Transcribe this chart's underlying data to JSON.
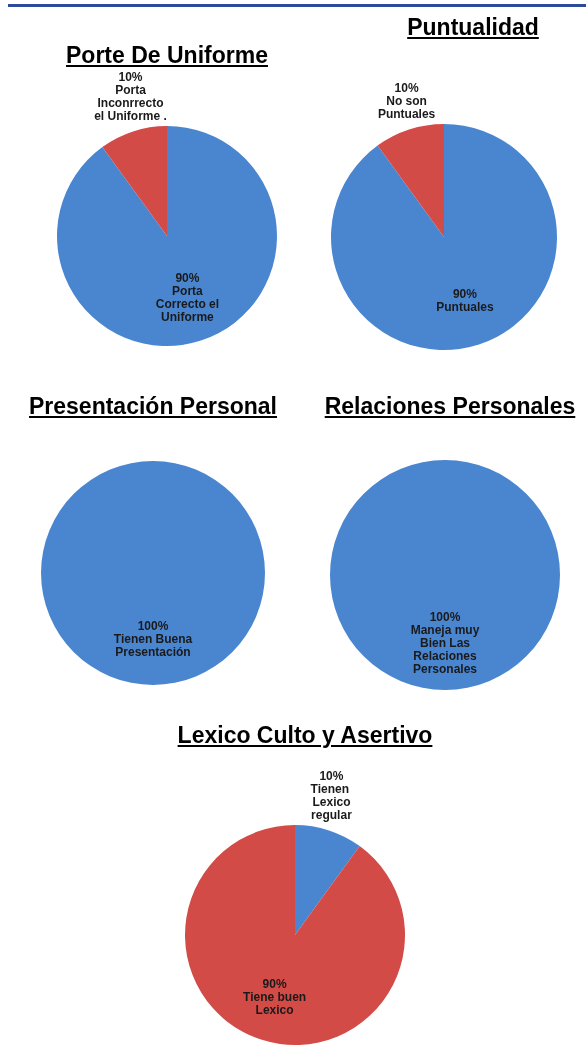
{
  "chart_data": [
    {
      "type": "pie",
      "title": "Porte De Uniforme",
      "categories": [
        "Porta Correcto el Uniforme",
        "Porta Inconrrecto el Uniforme ."
      ],
      "values": [
        90,
        10
      ],
      "colors": [
        "#4a86d0",
        "#d24b47"
      ],
      "value_labels": [
        "90%",
        "10%"
      ]
    },
    {
      "type": "pie",
      "title": "Puntualidad",
      "categories": [
        "Puntuales",
        "No son Puntuales"
      ],
      "values": [
        90,
        10
      ],
      "colors": [
        "#4a86d0",
        "#d24b47"
      ],
      "value_labels": [
        "90%",
        "10%"
      ]
    },
    {
      "type": "pie",
      "title": "Presentación Personal",
      "categories": [
        "Tienen Buena Presentación"
      ],
      "values": [
        100
      ],
      "colors": [
        "#4a86d0"
      ],
      "value_labels": [
        "100%"
      ]
    },
    {
      "type": "pie",
      "title": "Relaciones Personales",
      "categories": [
        "Maneja muy Bien Las Relaciones Personales"
      ],
      "values": [
        100
      ],
      "colors": [
        "#4a86d0"
      ],
      "value_labels": [
        "100%"
      ]
    },
    {
      "type": "pie",
      "title": "Lexico Culto y Asertivo",
      "categories": [
        "Tienen  Lexico regular",
        "Tiene buen Lexico"
      ],
      "values": [
        10,
        90
      ],
      "colors": [
        "#4a86d0",
        "#d24b47"
      ],
      "value_labels": [
        "10%",
        "90%"
      ]
    }
  ]
}
